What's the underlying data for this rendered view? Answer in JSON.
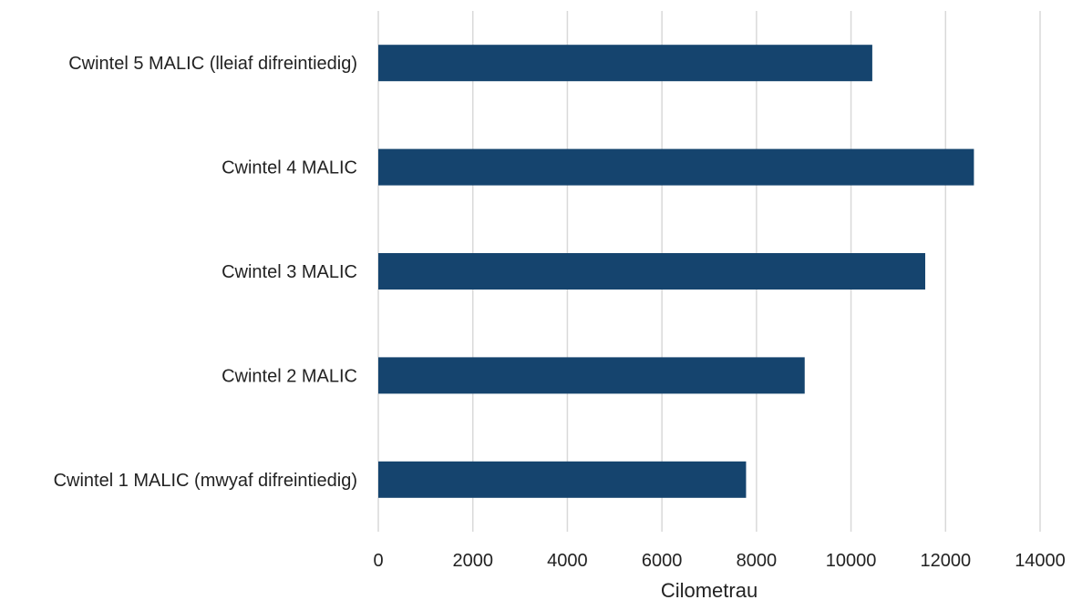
{
  "chart_data": {
    "type": "bar",
    "orientation": "horizontal",
    "categories": [
      "Cwintel 5 MALIC (lleiaf difreintiedig)",
      "Cwintel 4 MALIC",
      "Cwintel 3 MALIC",
      "Cwintel 2 MALIC",
      "Cwintel 1 MALIC (mwyaf difreintiedig)"
    ],
    "values": [
      10450,
      12600,
      11570,
      9020,
      7780
    ],
    "xlabel": "Cilometrau",
    "ylabel": "",
    "xlim": [
      0,
      14000
    ],
    "xticks": [
      0,
      2000,
      4000,
      6000,
      8000,
      10000,
      12000,
      14000
    ],
    "tick_labels": [
      "0",
      "2000",
      "4000",
      "6000",
      "8000",
      "10000",
      "12000",
      "14000"
    ],
    "grid": "vertical",
    "legend": "none",
    "bar_color": "#15446e",
    "grid_color": "#d9d9d9"
  }
}
